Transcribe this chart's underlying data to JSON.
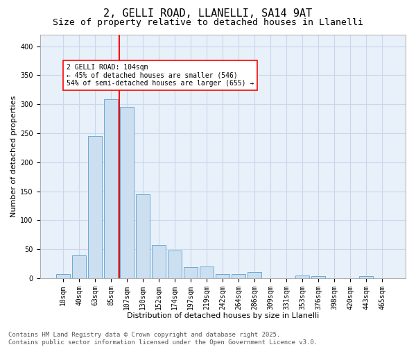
{
  "title_line1": "2, GELLI ROAD, LLANELLI, SA14 9AT",
  "title_line2": "Size of property relative to detached houses in Llanelli",
  "xlabel": "Distribution of detached houses by size in Llanelli",
  "ylabel": "Number of detached properties",
  "bar_labels": [
    "18sqm",
    "40sqm",
    "63sqm",
    "85sqm",
    "107sqm",
    "130sqm",
    "152sqm",
    "174sqm",
    "197sqm",
    "219sqm",
    "242sqm",
    "264sqm",
    "286sqm",
    "309sqm",
    "331sqm",
    "353sqm",
    "376sqm",
    "398sqm",
    "420sqm",
    "443sqm",
    "465sqm"
  ],
  "bar_values": [
    7,
    39,
    245,
    309,
    295,
    145,
    57,
    48,
    19,
    20,
    7,
    7,
    11,
    0,
    0,
    5,
    3,
    0,
    0,
    4,
    0
  ],
  "bar_color": "#ccdff0",
  "bar_edge_color": "#6aaad4",
  "vline_index": 4,
  "vline_color": "red",
  "annotation_text": "2 GELLI ROAD: 104sqm\n← 45% of detached houses are smaller (546)\n54% of semi-detached houses are larger (655) →",
  "annotation_box_color": "white",
  "annotation_border_color": "red",
  "ylim": [
    0,
    420
  ],
  "yticks": [
    0,
    50,
    100,
    150,
    200,
    250,
    300,
    350,
    400
  ],
  "grid_color": "#c8d8ea",
  "background_color": "#e8f0fa",
  "footer_text": "Contains HM Land Registry data © Crown copyright and database right 2025.\nContains public sector information licensed under the Open Government Licence v3.0.",
  "title_fontsize": 11,
  "subtitle_fontsize": 9.5,
  "label_fontsize": 8,
  "tick_fontsize": 7,
  "footer_fontsize": 6.5,
  "annot_fontsize": 7
}
